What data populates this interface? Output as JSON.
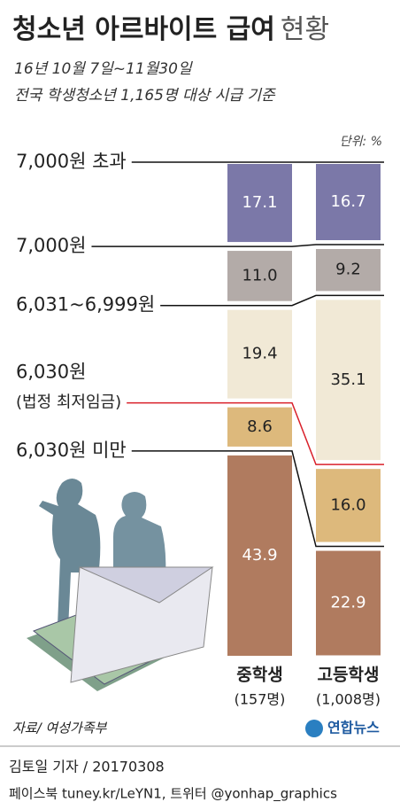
{
  "chart_data": {
    "type": "bar",
    "stacked": true,
    "title": "청소년 아르바이트 급여",
    "title_suffix": "현황",
    "subtitle": [
      "16년 10월 7일~11월30일",
      "전국 학생청소년 1,165명 대상 시급 기준"
    ],
    "unit": "단위: %",
    "categories": [
      "중학생",
      "고등학생"
    ],
    "category_notes": [
      "(157명)",
      "(1,008명)"
    ],
    "ylim": [
      0,
      100
    ],
    "series": [
      {
        "name": "7,000원 초과",
        "color": "#7b78a8",
        "text_color": "#ffffff",
        "line_color": "#111111",
        "values": [
          17.1,
          16.7
        ],
        "value_labels": [
          "17.1",
          "16.7"
        ]
      },
      {
        "name": "7,000원",
        "color": "#b3aba8",
        "text_color": "#222222",
        "line_color": "#111111",
        "values": [
          11.0,
          9.2
        ],
        "value_labels": [
          "11.0",
          "9.2"
        ]
      },
      {
        "name": "6,031~6,999원",
        "color": "#f1e9d6",
        "text_color": "#222222",
        "line_color": "#111111",
        "values": [
          19.4,
          35.1
        ],
        "value_labels": [
          "19.4",
          "35.1"
        ]
      },
      {
        "name": "6,030원",
        "sublabel": "(법정 최저임금)",
        "color": "#ddb97c",
        "text_color": "#222222",
        "line_color": "#d9202a",
        "values": [
          8.6,
          16.0
        ],
        "value_labels": [
          "8.6",
          "16.0"
        ]
      },
      {
        "name": "6,030원 미만",
        "color": "#b07b5f",
        "text_color": "#ffffff",
        "line_color": "#111111",
        "values": [
          43.9,
          22.9
        ],
        "value_labels": [
          "43.9",
          "22.9"
        ]
      }
    ],
    "source": "자료/ 여성가족부",
    "logo": "연합뉴스",
    "credit": "김토일 기자 / 20170308",
    "social": "페이스북 tuney.kr/LeYN1, 트위터 @yonhap_graphics"
  }
}
